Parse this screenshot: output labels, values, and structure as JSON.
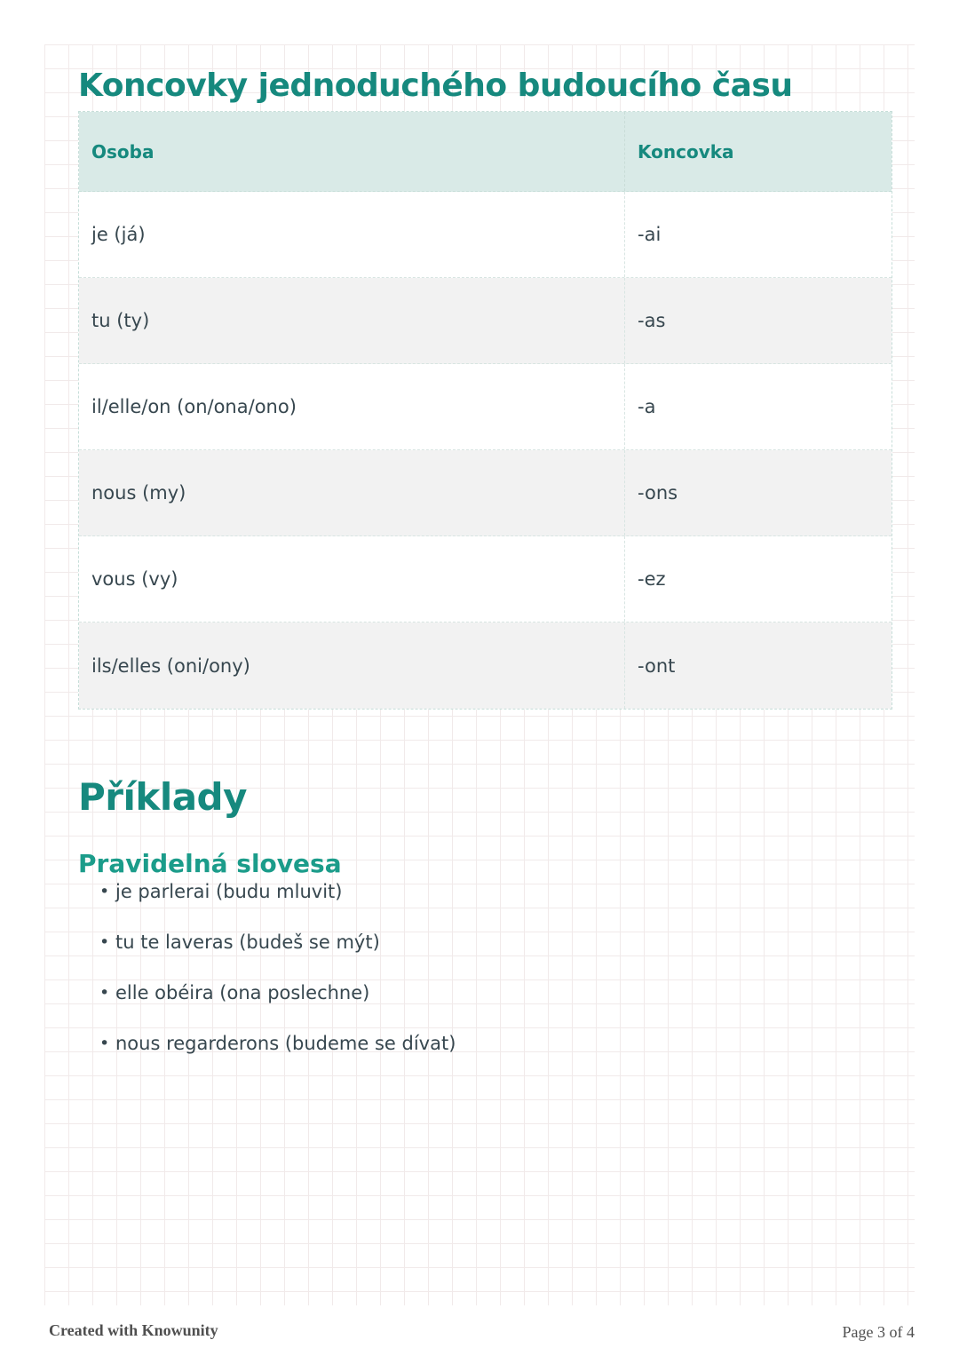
{
  "page": {
    "title": "Koncovky jednoduchého budoucího času",
    "section_heading": "Příklady",
    "subsection_heading": "Pravidelná slovesa",
    "footer_left": "Created with Knowunity",
    "footer_right": "Page 3 of 4"
  },
  "table": {
    "headers": [
      "Osoba",
      "Koncovka"
    ],
    "rows": [
      {
        "person": "je (já)",
        "ending": "-ai"
      },
      {
        "person": "tu (ty)",
        "ending": "-as"
      },
      {
        "person": "il/elle/on (on/ona/ono)",
        "ending": "-a"
      },
      {
        "person": "nous (my)",
        "ending": "-ons"
      },
      {
        "person": "vous (vy)",
        "ending": "-ez"
      },
      {
        "person": "ils/elles (oni/ony)",
        "ending": "-ont"
      }
    ]
  },
  "examples": {
    "items": [
      "je parlerai (budu mluvit)",
      "tu te laveras (budeš se mýt)",
      "elle obéira (ona poslechne)",
      "nous regarderons (budeme se dívat)"
    ]
  },
  "colors": {
    "accent_teal": "#16897e",
    "accent_teal_light": "#1b9c8a",
    "table_header_bg": "#d9eae7",
    "row_alt_bg": "#f2f2f2",
    "body_text": "#37474f",
    "dashed_border": "#c7ded9",
    "footer_text": "#4f4f4f"
  }
}
